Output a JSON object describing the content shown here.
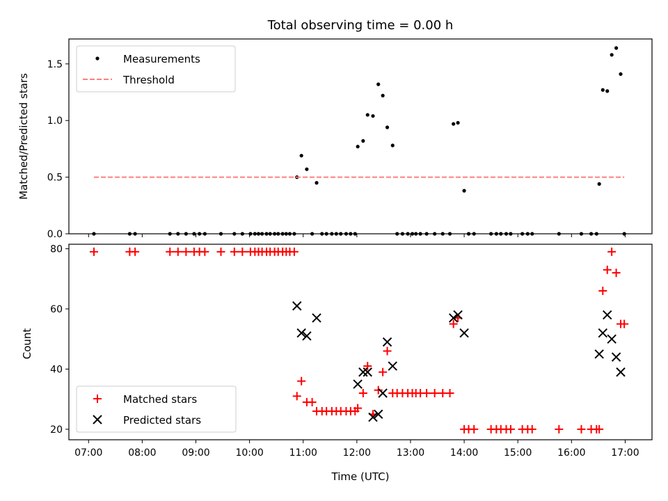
{
  "chart_data": [
    {
      "type": "scatter",
      "title": "Total observing time = 0.00 h",
      "xlabel": "",
      "ylabel": "Matched/Predicted stars",
      "xlim": [
        "06:38",
        "17:30"
      ],
      "ylim": [
        0,
        1.72
      ],
      "yticks": [
        "0.0",
        "0.5",
        "1.0",
        "1.5"
      ],
      "grid": false,
      "legend_position": "upper left",
      "series": [
        {
          "name": "Measurements",
          "color": "#000000",
          "marker": "dot",
          "points": [
            [
              "07:06",
              0
            ],
            [
              "07:46",
              0
            ],
            [
              "07:52",
              0
            ],
            [
              "08:31",
              0
            ],
            [
              "08:40",
              0
            ],
            [
              "08:49",
              0
            ],
            [
              "08:58",
              0
            ],
            [
              "09:04",
              0
            ],
            [
              "09:10",
              0
            ],
            [
              "09:28",
              0
            ],
            [
              "09:43",
              0
            ],
            [
              "09:52",
              0
            ],
            [
              "10:01",
              0
            ],
            [
              "10:06",
              0
            ],
            [
              "10:10",
              0
            ],
            [
              "10:14",
              0
            ],
            [
              "10:19",
              0
            ],
            [
              "10:23",
              0
            ],
            [
              "10:28",
              0
            ],
            [
              "10:32",
              0
            ],
            [
              "10:37",
              0
            ],
            [
              "10:41",
              0
            ],
            [
              "10:45",
              0
            ],
            [
              "10:50",
              0
            ],
            [
              "10:53",
              0.5
            ],
            [
              "10:58",
              0.69
            ],
            [
              "11:04",
              0.57
            ],
            [
              "11:10",
              0
            ],
            [
              "11:15",
              0.45
            ],
            [
              "11:21",
              0
            ],
            [
              "11:26",
              0
            ],
            [
              "11:32",
              0
            ],
            [
              "11:37",
              0
            ],
            [
              "11:42",
              0
            ],
            [
              "11:48",
              0
            ],
            [
              "11:53",
              0
            ],
            [
              "11:58",
              0
            ],
            [
              "12:01",
              0.77
            ],
            [
              "12:07",
              0.82
            ],
            [
              "12:12",
              1.05
            ],
            [
              "12:18",
              1.04
            ],
            [
              "12:24",
              1.32
            ],
            [
              "12:29",
              1.22
            ],
            [
              "12:34",
              0.94
            ],
            [
              "12:40",
              0.78
            ],
            [
              "12:45",
              0
            ],
            [
              "12:51",
              0
            ],
            [
              "12:57",
              0
            ],
            [
              "13:02",
              0
            ],
            [
              "13:06",
              0
            ],
            [
              "13:11",
              0
            ],
            [
              "13:18",
              0
            ],
            [
              "13:27",
              0
            ],
            [
              "13:36",
              0
            ],
            [
              "13:44",
              0
            ],
            [
              "13:48",
              0.97
            ],
            [
              "13:53",
              0.98
            ],
            [
              "14:00",
              0.38
            ],
            [
              "14:05",
              0
            ],
            [
              "14:11",
              0
            ],
            [
              "14:30",
              0
            ],
            [
              "14:36",
              0
            ],
            [
              "14:41",
              0
            ],
            [
              "14:47",
              0
            ],
            [
              "14:52",
              0
            ],
            [
              "15:05",
              0
            ],
            [
              "15:11",
              0
            ],
            [
              "15:16",
              0
            ],
            [
              "15:46",
              0
            ],
            [
              "16:11",
              0
            ],
            [
              "16:22",
              0
            ],
            [
              "16:28",
              0
            ],
            [
              "16:31",
              0.44
            ],
            [
              "16:35",
              1.27
            ],
            [
              "16:40",
              1.26
            ],
            [
              "16:45",
              1.58
            ],
            [
              "16:50",
              1.64
            ],
            [
              "16:55",
              1.41
            ],
            [
              "16:59",
              0
            ]
          ]
        },
        {
          "name": "Threshold",
          "color": "#ff7f7f",
          "style": "dashed",
          "points": [
            [
              "07:06",
              0.5
            ],
            [
              "16:59",
              0.5
            ]
          ]
        }
      ]
    },
    {
      "type": "scatter",
      "title": "",
      "xlabel": "Time (UTC)",
      "ylabel": "Count",
      "xlim": [
        "06:38",
        "17:30"
      ],
      "ylim": [
        16.5,
        81.5
      ],
      "yticks": [
        "20",
        "40",
        "60",
        "80"
      ],
      "xticks": [
        "07:00",
        "08:00",
        "09:00",
        "10:00",
        "11:00",
        "12:00",
        "13:00",
        "14:00",
        "15:00",
        "16:00",
        "17:00"
      ],
      "grid": false,
      "legend_position": "lower left",
      "series": [
        {
          "name": "Matched stars",
          "color": "#ff0000",
          "marker": "plus",
          "points": [
            [
              "07:06",
              79
            ],
            [
              "07:46",
              79
            ],
            [
              "07:52",
              79
            ],
            [
              "08:31",
              79
            ],
            [
              "08:40",
              79
            ],
            [
              "08:49",
              79
            ],
            [
              "08:58",
              79
            ],
            [
              "09:04",
              79
            ],
            [
              "09:10",
              79
            ],
            [
              "09:28",
              79
            ],
            [
              "09:43",
              79
            ],
            [
              "09:52",
              79
            ],
            [
              "10:01",
              79
            ],
            [
              "10:06",
              79
            ],
            [
              "10:10",
              79
            ],
            [
              "10:14",
              79
            ],
            [
              "10:19",
              79
            ],
            [
              "10:23",
              79
            ],
            [
              "10:28",
              79
            ],
            [
              "10:32",
              79
            ],
            [
              "10:37",
              79
            ],
            [
              "10:41",
              79
            ],
            [
              "10:45",
              79
            ],
            [
              "10:50",
              79
            ],
            [
              "10:53",
              31
            ],
            [
              "10:58",
              36
            ],
            [
              "11:04",
              29
            ],
            [
              "11:10",
              29
            ],
            [
              "11:15",
              26
            ],
            [
              "11:21",
              26
            ],
            [
              "11:26",
              26
            ],
            [
              "11:32",
              26
            ],
            [
              "11:37",
              26
            ],
            [
              "11:42",
              26
            ],
            [
              "11:48",
              26
            ],
            [
              "11:53",
              26
            ],
            [
              "11:58",
              26
            ],
            [
              "12:01",
              27
            ],
            [
              "12:07",
              32
            ],
            [
              "12:12",
              41
            ],
            [
              "12:18",
              25
            ],
            [
              "12:24",
              33
            ],
            [
              "12:29",
              39
            ],
            [
              "12:34",
              46
            ],
            [
              "12:40",
              32
            ],
            [
              "12:45",
              32
            ],
            [
              "12:51",
              32
            ],
            [
              "12:57",
              32
            ],
            [
              "13:02",
              32
            ],
            [
              "13:06",
              32
            ],
            [
              "13:11",
              32
            ],
            [
              "13:18",
              32
            ],
            [
              "13:27",
              32
            ],
            [
              "13:36",
              32
            ],
            [
              "13:44",
              32
            ],
            [
              "13:48",
              55
            ],
            [
              "13:53",
              57
            ],
            [
              "14:00",
              20
            ],
            [
              "14:05",
              20
            ],
            [
              "14:11",
              20
            ],
            [
              "14:30",
              20
            ],
            [
              "14:36",
              20
            ],
            [
              "14:41",
              20
            ],
            [
              "14:47",
              20
            ],
            [
              "14:52",
              20
            ],
            [
              "15:05",
              20
            ],
            [
              "15:11",
              20
            ],
            [
              "15:16",
              20
            ],
            [
              "15:46",
              20
            ],
            [
              "16:11",
              20
            ],
            [
              "16:22",
              20
            ],
            [
              "16:28",
              20
            ],
            [
              "16:31",
              20
            ],
            [
              "16:35",
              66
            ],
            [
              "16:40",
              73
            ],
            [
              "16:45",
              79
            ],
            [
              "16:50",
              72
            ],
            [
              "16:55",
              55
            ],
            [
              "16:59",
              55
            ]
          ]
        },
        {
          "name": "Predicted stars",
          "color": "#000000",
          "marker": "x",
          "points": [
            [
              "10:53",
              61
            ],
            [
              "10:58",
              52
            ],
            [
              "11:04",
              51
            ],
            [
              "11:15",
              57
            ],
            [
              "12:01",
              35
            ],
            [
              "12:07",
              39
            ],
            [
              "12:12",
              39
            ],
            [
              "12:18",
              24
            ],
            [
              "12:24",
              25
            ],
            [
              "12:29",
              32
            ],
            [
              "12:34",
              49
            ],
            [
              "12:40",
              41
            ],
            [
              "13:48",
              57
            ],
            [
              "13:53",
              58
            ],
            [
              "14:00",
              52
            ],
            [
              "16:31",
              45
            ],
            [
              "16:35",
              52
            ],
            [
              "16:40",
              58
            ],
            [
              "16:45",
              50
            ],
            [
              "16:50",
              44
            ],
            [
              "16:55",
              39
            ]
          ]
        }
      ]
    }
  ]
}
